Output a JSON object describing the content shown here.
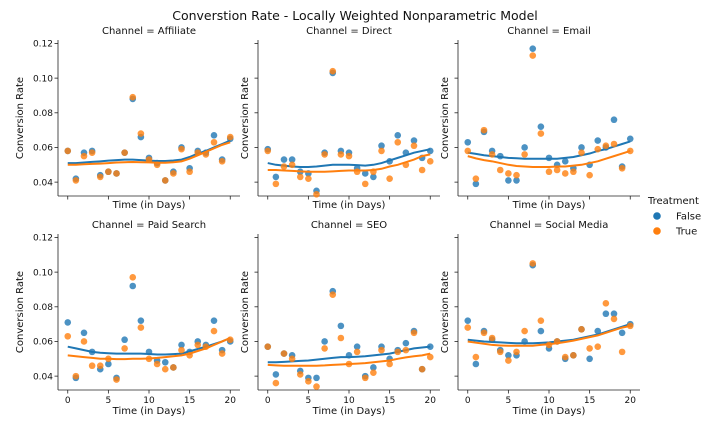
{
  "chart_data": {
    "type": "scatter",
    "title": "Converstion Rate - Locally Weighted Nonparametric Model",
    "xlabel": "Time (in Days)",
    "ylabel": "Conversion Rate",
    "xlim": [
      -1.2,
      21.2
    ],
    "ylim": [
      0.032,
      0.122
    ],
    "xticks": [
      "0",
      "5",
      "10",
      "15",
      "20"
    ],
    "yticks": [
      "0.04",
      "0.06",
      "0.08",
      "0.10",
      "0.12"
    ],
    "grid": false,
    "legend": {
      "title": "Treatment",
      "position": "right",
      "entries": [
        {
          "label": "False",
          "color": "#1f77b4"
        },
        {
          "label": "True",
          "color": "#ff7f0e"
        }
      ]
    },
    "panels": [
      {
        "title": "Channel = Affiliate",
        "series": [
          {
            "name": "False",
            "color": "#1f77b4",
            "x": [
              0,
              1,
              2,
              3,
              4,
              5,
              6,
              7,
              8,
              9,
              10,
              11,
              12,
              13,
              14,
              15,
              16,
              17,
              18,
              19,
              20
            ],
            "y": [
              0.058,
              0.042,
              0.057,
              0.058,
              0.044,
              0.046,
              0.045,
              0.057,
              0.088,
              0.066,
              0.054,
              0.051,
              0.041,
              0.046,
              0.06,
              0.048,
              0.058,
              0.057,
              0.067,
              0.053,
              0.065
            ],
            "trend": [
              0.051,
              0.051,
              0.0513,
              0.0517,
              0.052,
              0.0524,
              0.0527,
              0.053,
              0.053,
              0.0527,
              0.0524,
              0.0522,
              0.0522,
              0.0525,
              0.053,
              0.0545,
              0.0565,
              0.058,
              0.06,
              0.062,
              0.064
            ]
          },
          {
            "name": "True",
            "color": "#ff7f0e",
            "x": [
              0,
              1,
              2,
              3,
              4,
              5,
              6,
              7,
              8,
              9,
              10,
              11,
              12,
              13,
              14,
              15,
              16,
              17,
              18,
              19,
              20
            ],
            "y": [
              0.058,
              0.041,
              0.055,
              0.057,
              0.043,
              0.046,
              0.045,
              0.057,
              0.089,
              0.068,
              0.053,
              0.05,
              0.041,
              0.045,
              0.059,
              0.046,
              0.057,
              0.056,
              0.063,
              0.052,
              0.066
            ],
            "trend": [
              0.05,
              0.05,
              0.0503,
              0.0505,
              0.0507,
              0.051,
              0.0513,
              0.0515,
              0.0516,
              0.0515,
              0.0514,
              0.0512,
              0.0512,
              0.0515,
              0.052,
              0.0535,
              0.0555,
              0.0575,
              0.0595,
              0.0615,
              0.063
            ]
          }
        ]
      },
      {
        "title": "Channel = Direct",
        "series": [
          {
            "name": "False",
            "color": "#1f77b4",
            "x": [
              0,
              1,
              2,
              3,
              4,
              5,
              6,
              7,
              8,
              9,
              10,
              11,
              12,
              13,
              14,
              15,
              16,
              17,
              18,
              19,
              20
            ],
            "y": [
              0.059,
              0.043,
              0.053,
              0.053,
              0.046,
              0.045,
              0.035,
              0.057,
              0.103,
              0.058,
              0.057,
              0.048,
              0.045,
              0.043,
              0.061,
              0.052,
              0.067,
              0.057,
              0.064,
              0.054,
              0.058
            ],
            "trend": [
              0.051,
              0.05,
              0.0495,
              0.049,
              0.0487,
              0.0487,
              0.049,
              0.0495,
              0.05,
              0.05,
              0.05,
              0.0498,
              0.0495,
              0.05,
              0.051,
              0.0525,
              0.054,
              0.0555,
              0.057,
              0.058,
              0.059
            ]
          },
          {
            "name": "True",
            "color": "#ff7f0e",
            "x": [
              0,
              1,
              2,
              3,
              4,
              5,
              6,
              7,
              8,
              9,
              10,
              11,
              12,
              13,
              14,
              15,
              16,
              17,
              18,
              19,
              20
            ],
            "y": [
              0.058,
              0.039,
              0.049,
              0.05,
              0.043,
              0.042,
              0.033,
              0.056,
              0.104,
              0.056,
              0.055,
              0.046,
              0.039,
              0.046,
              0.058,
              0.042,
              0.063,
              0.05,
              0.061,
              0.047,
              0.052
            ],
            "trend": [
              0.047,
              0.047,
              0.0467,
              0.0465,
              0.0462,
              0.046,
              0.046,
              0.046,
              0.0462,
              0.0465,
              0.0467,
              0.0467,
              0.0467,
              0.047,
              0.0477,
              0.049,
              0.05,
              0.0515,
              0.053,
              0.055,
              0.056
            ]
          }
        ]
      },
      {
        "title": "Channel = Email",
        "series": [
          {
            "name": "False",
            "color": "#1f77b4",
            "x": [
              0,
              1,
              2,
              3,
              4,
              5,
              6,
              7,
              8,
              9,
              10,
              11,
              12,
              13,
              14,
              15,
              16,
              17,
              18,
              19,
              20
            ],
            "y": [
              0.063,
              0.039,
              0.069,
              0.058,
              0.055,
              0.041,
              0.041,
              0.06,
              0.117,
              0.072,
              0.054,
              0.05,
              0.052,
              0.048,
              0.06,
              0.05,
              0.064,
              0.06,
              0.076,
              0.049,
              0.065
            ],
            "trend": [
              0.057,
              0.0563,
              0.0555,
              0.055,
              0.0545,
              0.054,
              0.0538,
              0.0535,
              0.0535,
              0.0535,
              0.0535,
              0.0535,
              0.054,
              0.0545,
              0.0555,
              0.0565,
              0.058,
              0.059,
              0.0605,
              0.062,
              0.0635
            ]
          },
          {
            "name": "True",
            "color": "#ff7f0e",
            "x": [
              0,
              1,
              2,
              3,
              4,
              5,
              6,
              7,
              8,
              9,
              10,
              11,
              12,
              13,
              14,
              15,
              16,
              17,
              18,
              19,
              20
            ],
            "y": [
              0.058,
              0.042,
              0.07,
              0.056,
              0.047,
              0.045,
              0.044,
              0.056,
              0.113,
              0.068,
              0.046,
              0.047,
              0.045,
              0.046,
              0.057,
              0.044,
              0.059,
              0.061,
              0.062,
              0.048,
              0.058
            ],
            "trend": [
              0.055,
              0.0537,
              0.0527,
              0.052,
              0.051,
              0.05,
              0.0493,
              0.049,
              0.0487,
              0.0487,
              0.0487,
              0.049,
              0.049,
              0.0495,
              0.05,
              0.051,
              0.052,
              0.0535,
              0.055,
              0.0565,
              0.058
            ]
          }
        ]
      },
      {
        "title": "Channel = Paid Search",
        "series": [
          {
            "name": "False",
            "color": "#1f77b4",
            "x": [
              0,
              1,
              2,
              3,
              4,
              5,
              6,
              7,
              8,
              9,
              10,
              11,
              12,
              13,
              14,
              15,
              16,
              17,
              18,
              19,
              20
            ],
            "y": [
              0.071,
              0.039,
              0.065,
              0.054,
              0.044,
              0.047,
              0.039,
              0.061,
              0.092,
              0.072,
              0.054,
              0.049,
              0.048,
              0.045,
              0.058,
              0.054,
              0.06,
              0.058,
              0.072,
              0.055,
              0.06
            ],
            "trend": [
              0.057,
              0.056,
              0.055,
              0.054,
              0.0535,
              0.0532,
              0.053,
              0.053,
              0.053,
              0.053,
              0.0528,
              0.0525,
              0.0525,
              0.0527,
              0.053,
              0.0543,
              0.0557,
              0.057,
              0.0585,
              0.06,
              0.062
            ]
          },
          {
            "name": "True",
            "color": "#ff7f0e",
            "x": [
              0,
              1,
              2,
              3,
              4,
              5,
              6,
              7,
              8,
              9,
              10,
              11,
              12,
              13,
              14,
              15,
              16,
              17,
              18,
              19,
              20
            ],
            "y": [
              0.063,
              0.04,
              0.06,
              0.046,
              0.046,
              0.05,
              0.038,
              0.056,
              0.097,
              0.068,
              0.05,
              0.047,
              0.044,
              0.045,
              0.055,
              0.052,
              0.058,
              0.057,
              0.066,
              0.053,
              0.061
            ],
            "trend": [
              0.052,
              0.0515,
              0.051,
              0.0505,
              0.05,
              0.05,
              0.0498,
              0.0498,
              0.05,
              0.05,
              0.0502,
              0.0505,
              0.051,
              0.0515,
              0.052,
              0.053,
              0.0545,
              0.056,
              0.058,
              0.06,
              0.062
            ]
          }
        ]
      },
      {
        "title": "Channel = SEO",
        "series": [
          {
            "name": "False",
            "color": "#1f77b4",
            "x": [
              0,
              1,
              2,
              3,
              4,
              5,
              6,
              7,
              8,
              9,
              10,
              11,
              12,
              13,
              14,
              15,
              16,
              17,
              18,
              19,
              20
            ],
            "y": [
              0.057,
              0.041,
              0.053,
              0.052,
              0.043,
              0.039,
              0.039,
              0.06,
              0.089,
              0.069,
              0.052,
              0.057,
              0.04,
              0.045,
              0.057,
              0.05,
              0.055,
              0.059,
              0.066,
              0.044,
              0.057
            ],
            "trend": [
              0.048,
              0.048,
              0.0482,
              0.0485,
              0.0488,
              0.049,
              0.0495,
              0.05,
              0.0505,
              0.051,
              0.051,
              0.0512,
              0.0515,
              0.052,
              0.0525,
              0.053,
              0.054,
              0.055,
              0.056,
              0.0565,
              0.057
            ]
          },
          {
            "name": "True",
            "color": "#ff7f0e",
            "x": [
              0,
              1,
              2,
              3,
              4,
              5,
              6,
              7,
              8,
              9,
              10,
              11,
              12,
              13,
              14,
              15,
              16,
              17,
              18,
              19,
              20
            ],
            "y": [
              0.057,
              0.036,
              0.053,
              0.05,
              0.041,
              0.037,
              0.034,
              0.056,
              0.087,
              0.062,
              0.047,
              0.054,
              0.039,
              0.042,
              0.055,
              0.047,
              0.054,
              0.055,
              0.065,
              0.044,
              0.051
            ],
            "trend": [
              0.0465,
              0.0462,
              0.046,
              0.046,
              0.046,
              0.046,
              0.046,
              0.0462,
              0.0465,
              0.0467,
              0.047,
              0.0472,
              0.0475,
              0.048,
              0.0485,
              0.049,
              0.05,
              0.0508,
              0.0515,
              0.052,
              0.053
            ]
          }
        ]
      },
      {
        "title": "Channel = Social Media",
        "series": [
          {
            "name": "False",
            "color": "#1f77b4",
            "x": [
              0,
              1,
              2,
              3,
              4,
              5,
              6,
              7,
              8,
              9,
              10,
              11,
              12,
              13,
              14,
              15,
              16,
              17,
              18,
              19,
              20
            ],
            "y": [
              0.072,
              0.047,
              0.066,
              0.061,
              0.055,
              0.052,
              0.052,
              0.06,
              0.104,
              0.066,
              0.056,
              0.06,
              0.05,
              0.052,
              0.067,
              0.05,
              0.066,
              0.076,
              0.076,
              0.065,
              0.07
            ],
            "trend": [
              0.061,
              0.0605,
              0.06,
              0.0597,
              0.0595,
              0.0592,
              0.059,
              0.059,
              0.059,
              0.0592,
              0.0595,
              0.06,
              0.0605,
              0.061,
              0.062,
              0.063,
              0.064,
              0.0655,
              0.067,
              0.0685,
              0.07
            ]
          },
          {
            "name": "True",
            "color": "#ff7f0e",
            "x": [
              0,
              1,
              2,
              3,
              4,
              5,
              6,
              7,
              8,
              9,
              10,
              11,
              12,
              13,
              14,
              15,
              16,
              17,
              18,
              19,
              20
            ],
            "y": [
              0.068,
              0.051,
              0.065,
              0.062,
              0.054,
              0.049,
              0.054,
              0.066,
              0.105,
              0.072,
              0.058,
              0.06,
              0.051,
              0.052,
              0.067,
              0.056,
              0.057,
              0.082,
              0.073,
              0.054,
              0.069
            ],
            "trend": [
              0.06,
              0.0593,
              0.0587,
              0.058,
              0.0577,
              0.0575,
              0.0575,
              0.0575,
              0.0575,
              0.058,
              0.0585,
              0.059,
              0.0597,
              0.0605,
              0.0615,
              0.0625,
              0.0635,
              0.065,
              0.0665,
              0.068,
              0.069
            ]
          }
        ]
      }
    ]
  }
}
